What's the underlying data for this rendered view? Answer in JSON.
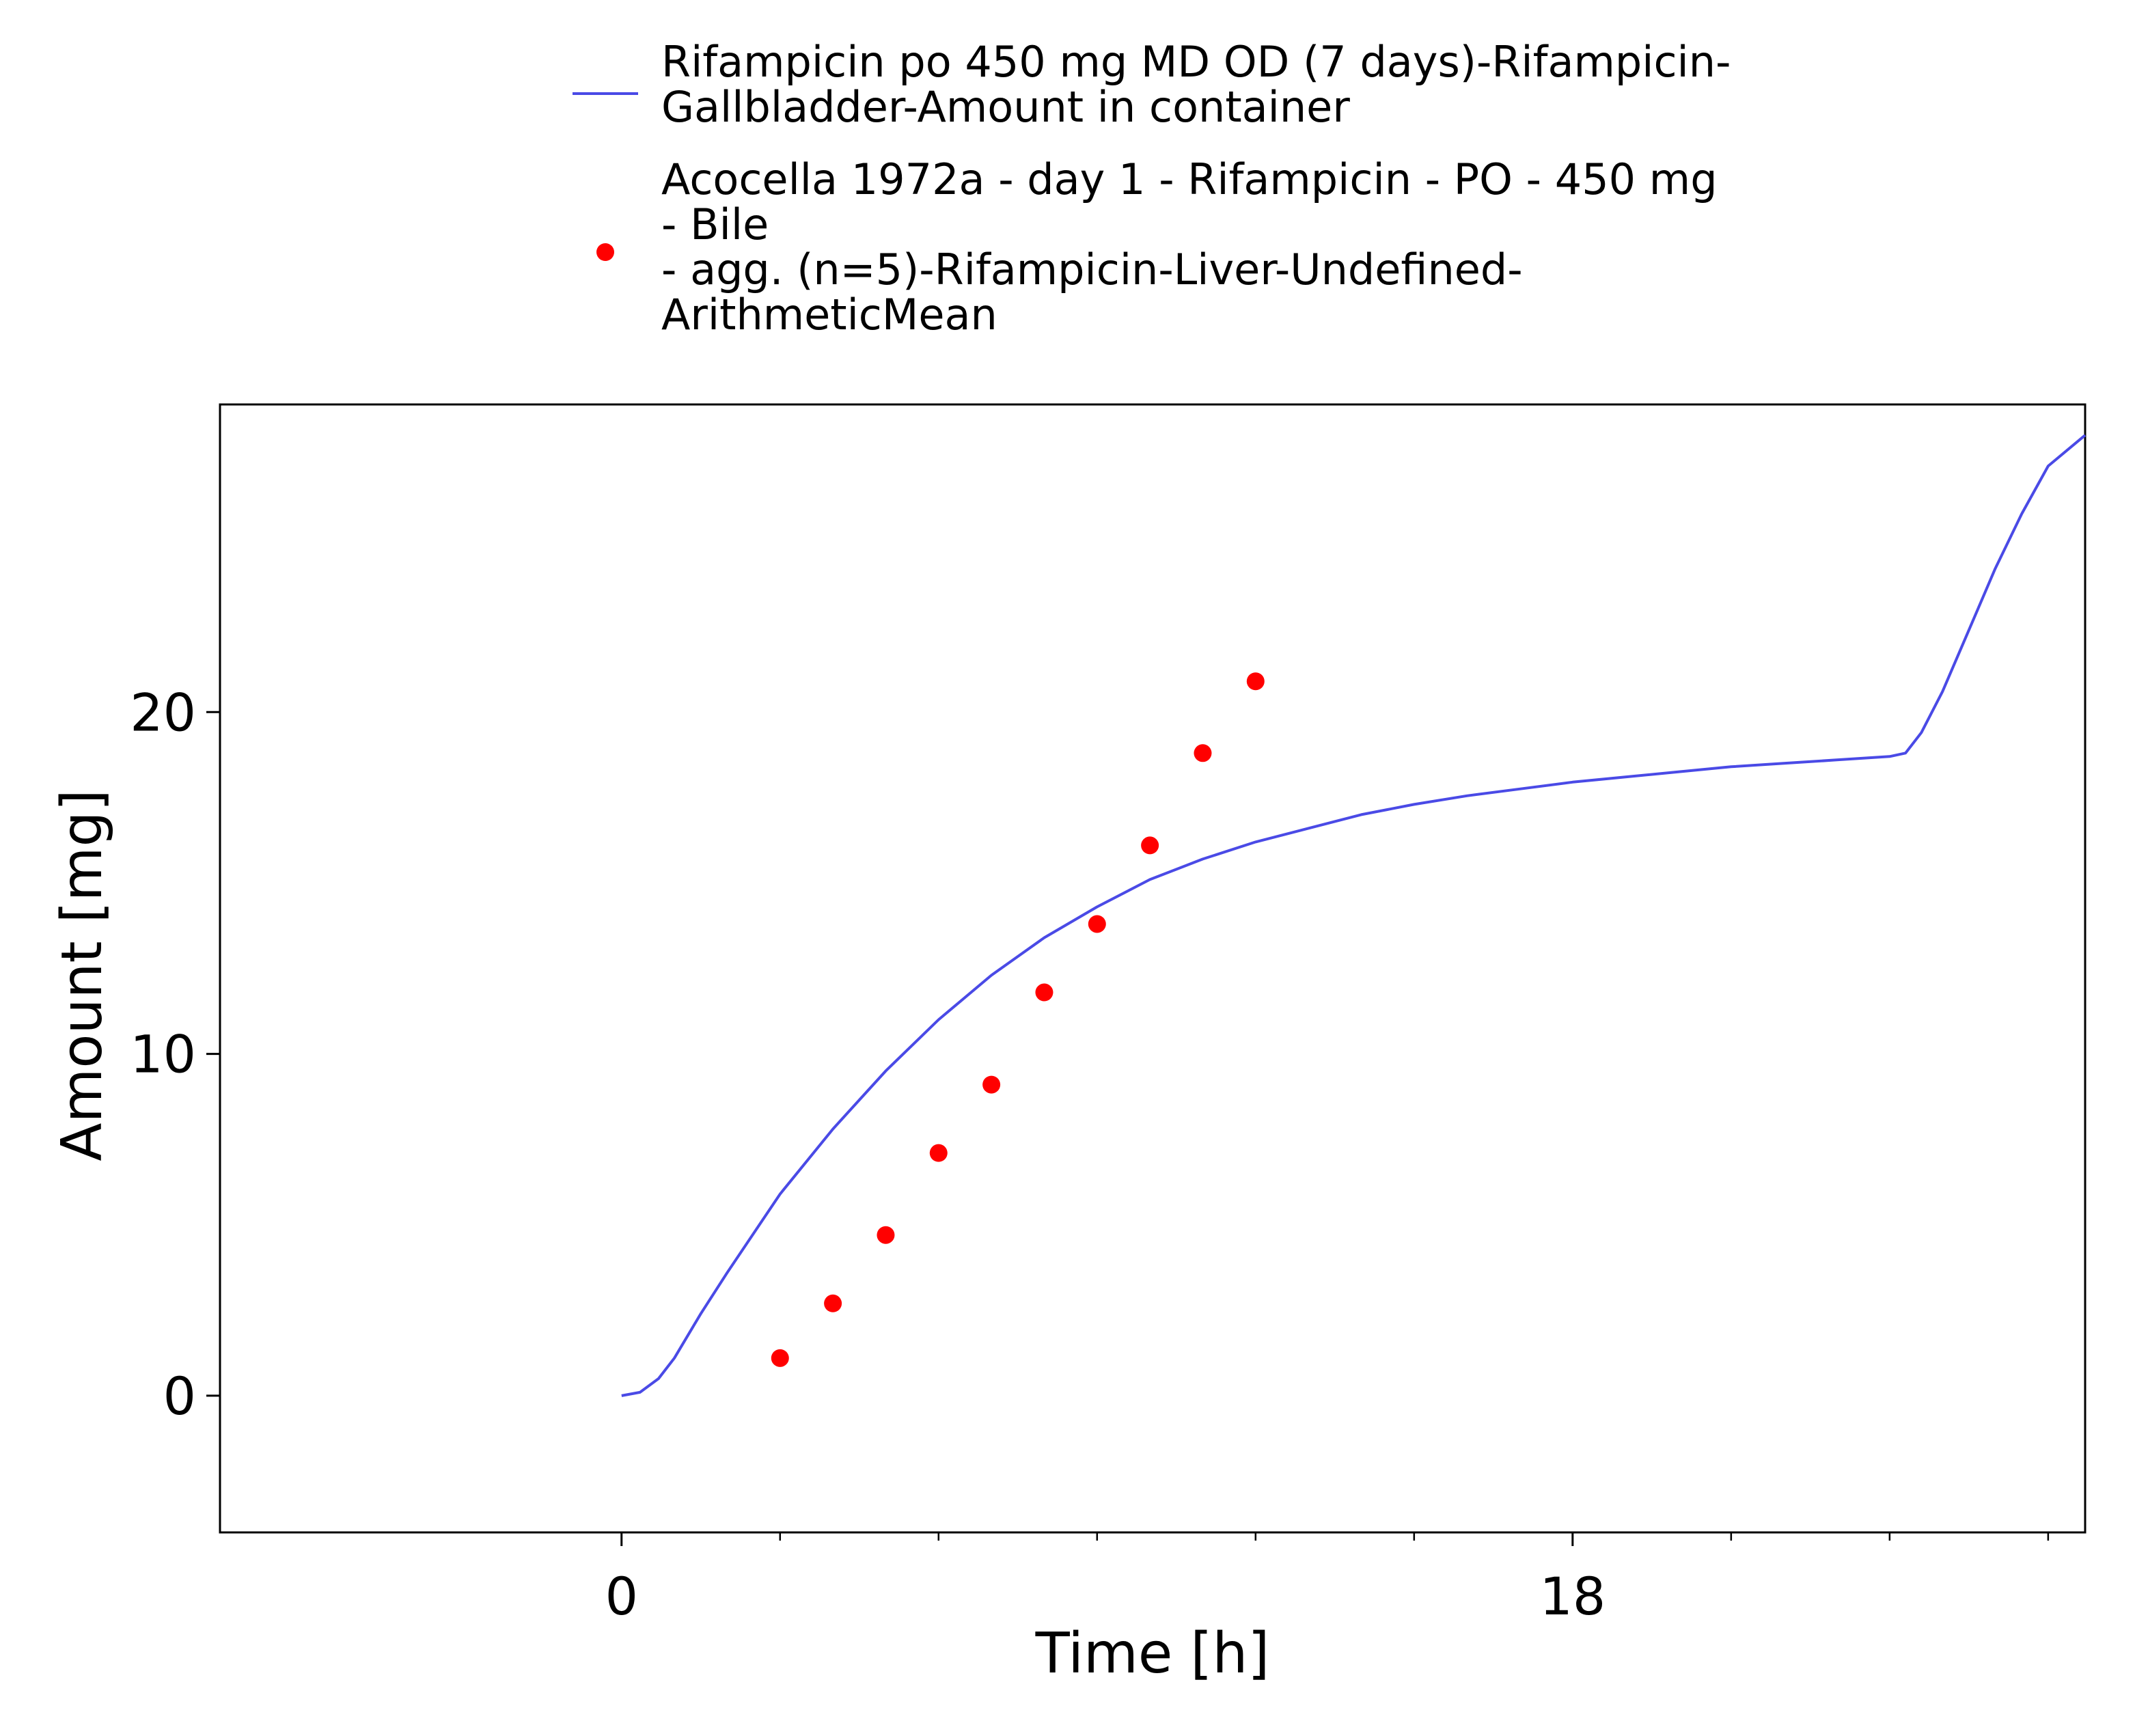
{
  "chart_data": {
    "type": "line",
    "title": "",
    "xlabel": "Time [h]",
    "ylabel": "Amount [mg]",
    "xlim": [
      -7.6,
      27.7
    ],
    "ylim": [
      -4,
      29
    ],
    "x_ticks": [
      {
        "value": 0,
        "label": "0"
      },
      {
        "value": 18,
        "label": "18"
      }
    ],
    "x_minor_ticks": [
      3,
      6,
      9,
      12,
      15,
      21,
      24,
      27
    ],
    "y_ticks": [
      {
        "value": 0,
        "label": "0"
      },
      {
        "value": 10,
        "label": "10"
      },
      {
        "value": 20,
        "label": "20"
      }
    ],
    "grid": false,
    "legend_position": "top",
    "series": [
      {
        "name_lines": [
          "Rifampicin po 450 mg MD OD (7 days)-Rifampicin-",
          "Gallbladder-Amount in container"
        ],
        "kind": "line",
        "color": "#4a4ae6",
        "x": [
          0,
          0.35,
          0.7,
          1.0,
          1.5,
          2.0,
          3.0,
          4.0,
          5.0,
          6.0,
          7.0,
          8.0,
          9.0,
          10.0,
          11.0,
          12.0,
          13.0,
          14.0,
          15.0,
          16.0,
          17.0,
          18.0,
          19.0,
          20.0,
          21.0,
          22.0,
          23.0,
          24.0,
          24.3,
          24.6,
          25.0,
          25.5,
          26.0,
          26.5,
          27.0,
          27.7
        ],
        "y": [
          0,
          0.1,
          0.5,
          1.1,
          2.4,
          3.6,
          5.9,
          7.8,
          9.5,
          11.0,
          12.3,
          13.4,
          14.3,
          15.1,
          15.7,
          16.2,
          16.6,
          17.0,
          17.3,
          17.55,
          17.75,
          17.95,
          18.1,
          18.25,
          18.4,
          18.5,
          18.6,
          18.7,
          18.8,
          19.4,
          20.6,
          22.4,
          24.2,
          25.8,
          27.2,
          28.1
        ]
      },
      {
        "name_lines": [
          "Acocella 1972a - day 1 - Rifampicin - PO - 450 mg",
          "- Bile",
          "- agg. (n=5)-Rifampicin-Liver-Undefined-",
          "ArithmeticMean"
        ],
        "kind": "scatter",
        "color": "#ff0000",
        "x": [
          3,
          4,
          5,
          6,
          7,
          8,
          9,
          10,
          11,
          12
        ],
        "y": [
          1.1,
          2.7,
          4.7,
          7.1,
          9.1,
          11.8,
          13.8,
          16.1,
          18.8,
          20.9
        ]
      }
    ]
  }
}
